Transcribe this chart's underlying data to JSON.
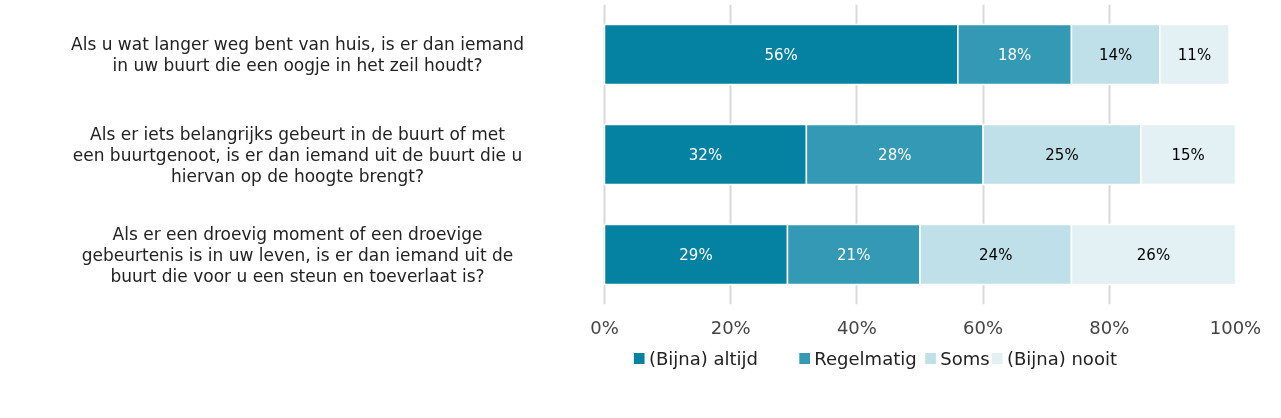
{
  "chart_data": {
    "type": "bar",
    "orientation": "horizontal",
    "stacked": true,
    "categories": [
      "Als u wat langer weg bent van huis, is er dan iemand in uw buurt die een oogje in het zeil houdt?",
      "Als er iets belangrijks gebeurt in de buurt of met een buurtgenoot, is er dan iemand uit de buurt die u hiervan op de hoogte brengt?",
      "Als er een droevig moment of een droevige gebeurtenis is in uw leven, is er dan iemand uit de buurt die voor u een steun en toeverlaat is?"
    ],
    "series": [
      {
        "name": "(Bijna) altijd",
        "color": "#0582a1",
        "values": [
          56,
          32,
          29
        ],
        "value_labels": [
          "56%",
          "32%",
          "29%"
        ]
      },
      {
        "name": "Regelmatig",
        "color": "#3399b5",
        "values": [
          18,
          28,
          21
        ],
        "value_labels": [
          "18%",
          "28%",
          "21%"
        ]
      },
      {
        "name": "Soms",
        "color": "#bfe0e8",
        "values": [
          14,
          25,
          24
        ],
        "value_labels": [
          "14%",
          "25%",
          "24%"
        ]
      },
      {
        "name": "(Bijna) nooit",
        "color": "#e3f1f5",
        "values": [
          11,
          15,
          26
        ],
        "value_labels": [
          "11%",
          "15%",
          "26%"
        ]
      }
    ],
    "xlim": [
      0,
      100
    ],
    "xticks": [
      {
        "value": 0,
        "label": "0%"
      },
      {
        "value": 20,
        "label": "20%"
      },
      {
        "value": 40,
        "label": "40%"
      },
      {
        "value": 60,
        "label": "60%"
      },
      {
        "value": 80,
        "label": "80%"
      },
      {
        "value": 100,
        "label": "100%"
      }
    ],
    "grid": "x",
    "legend": "bottom"
  }
}
